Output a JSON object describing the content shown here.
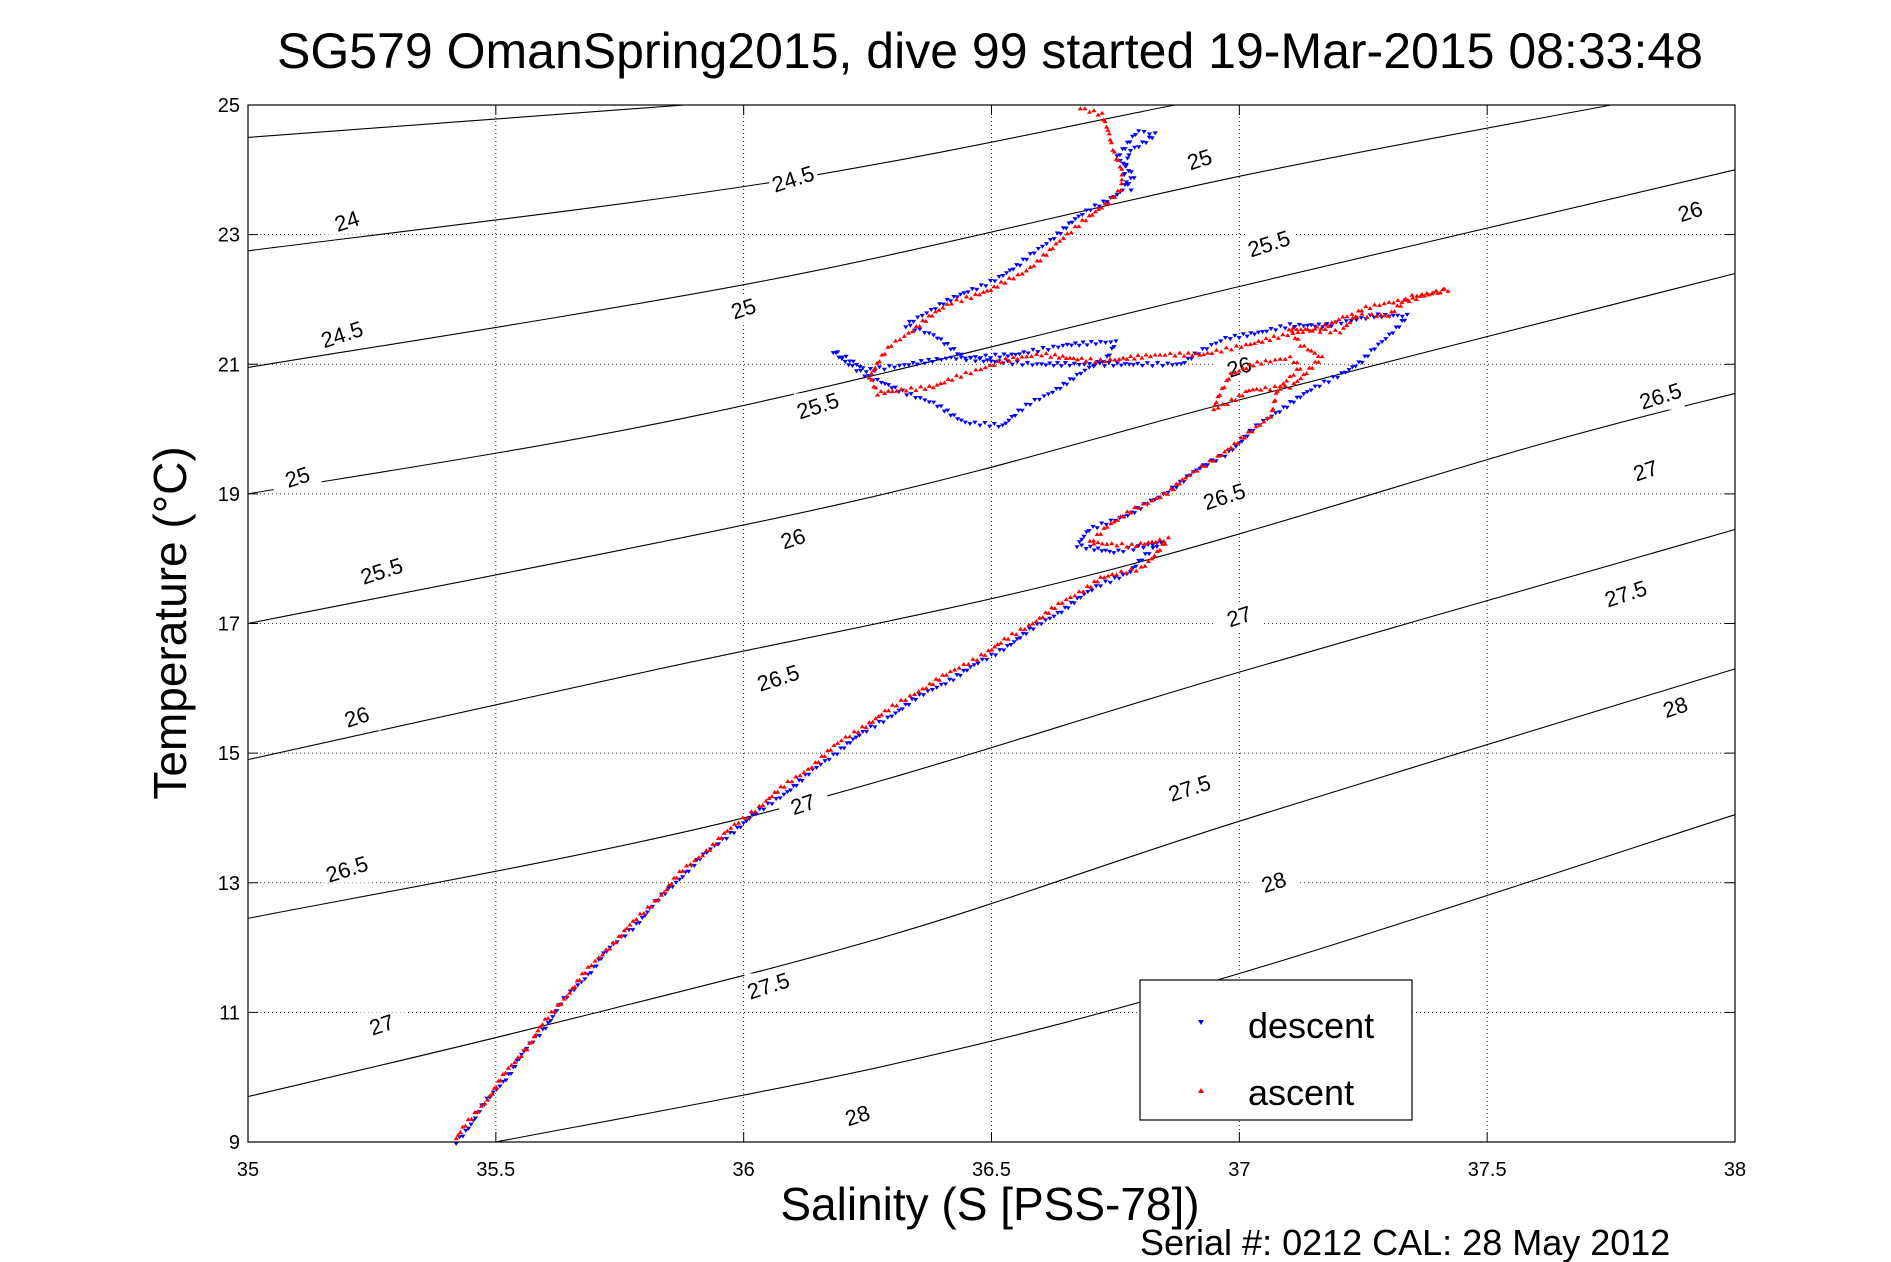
{
  "chart_data": {
    "type": "scatter",
    "title": "SG579 OmanSpring2015, dive 99 started 19-Mar-2015 08:33:48",
    "xlabel": "Salinity (S [PSS-78])",
    "ylabel": "Temperature (°C)",
    "footer": "Serial #: 0212  CAL: 28 May 2012",
    "xlim": [
      35,
      38
    ],
    "ylim": [
      9,
      25
    ],
    "xticks": [
      35,
      35.5,
      36,
      36.5,
      37,
      37.5,
      38
    ],
    "xtick_labels": [
      "35",
      "35.5",
      "36",
      "36.5",
      "37",
      "37.5",
      "38"
    ],
    "yticks": [
      9,
      11,
      13,
      15,
      17,
      19,
      21,
      23,
      25
    ],
    "ytick_labels": [
      "9",
      "11",
      "13",
      "15",
      "17",
      "19",
      "21",
      "23",
      "25"
    ],
    "grid": true,
    "legend_position": "bottom-right",
    "density_contours": [
      {
        "level": "24",
        "points": [
          [
            35,
            24.5
          ],
          [
            35.88,
            25
          ]
        ]
      },
      {
        "level": "24.5",
        "points": [
          [
            35,
            22.75
          ],
          [
            36.05,
            23.8
          ],
          [
            36.87,
            25
          ]
        ]
      },
      {
        "level": "25",
        "points": [
          [
            35,
            20.95
          ],
          [
            36.05,
            22.3
          ],
          [
            37.0,
            23.9
          ],
          [
            37.75,
            25
          ]
        ]
      },
      {
        "level": "25.5",
        "points": [
          [
            35,
            19.0
          ],
          [
            35.9,
            20.2
          ],
          [
            37.0,
            22.2
          ],
          [
            38,
            24.0
          ]
        ]
      },
      {
        "level": "26",
        "points": [
          [
            35,
            17.0
          ],
          [
            36.2,
            18.85
          ],
          [
            37.0,
            20.45
          ],
          [
            38,
            22.4
          ]
        ]
      },
      {
        "level": "26.5",
        "points": [
          [
            35,
            14.9
          ],
          [
            35.8,
            16.25
          ],
          [
            36.7,
            17.75
          ],
          [
            37.6,
            19.75
          ],
          [
            38,
            20.55
          ]
        ]
      },
      {
        "level": "27",
        "points": [
          [
            35,
            12.45
          ],
          [
            36.0,
            14.0
          ],
          [
            37.0,
            16.25
          ],
          [
            38,
            18.45
          ]
        ]
      },
      {
        "level": "27.5",
        "points": [
          [
            35,
            9.7
          ],
          [
            35.6,
            10.8
          ],
          [
            36.3,
            12.2
          ],
          [
            37.0,
            13.95
          ],
          [
            38,
            16.3
          ]
        ]
      },
      {
        "level": "28",
        "points": [
          [
            35.5,
            9.0
          ],
          [
            36.3,
            10.2
          ],
          [
            37.0,
            11.6
          ],
          [
            38,
            14.05
          ]
        ]
      }
    ],
    "contour_labels": [
      {
        "text": "24",
        "x": 35.2,
        "y": 23.2
      },
      {
        "text": "24.5",
        "x": 36.1,
        "y": 23.85
      },
      {
        "text": "24.5",
        "x": 35.19,
        "y": 21.45
      },
      {
        "text": "25",
        "x": 36.0,
        "y": 21.85
      },
      {
        "text": "25",
        "x": 36.92,
        "y": 24.15
      },
      {
        "text": "25",
        "x": 35.1,
        "y": 19.25
      },
      {
        "text": "25.5",
        "x": 36.15,
        "y": 20.35
      },
      {
        "text": "25.5",
        "x": 37.06,
        "y": 22.85
      },
      {
        "text": "25.5",
        "x": 35.27,
        "y": 17.8
      },
      {
        "text": "26",
        "x": 36.1,
        "y": 18.3
      },
      {
        "text": "26",
        "x": 37.0,
        "y": 20.95
      },
      {
        "text": "26",
        "x": 37.91,
        "y": 23.35
      },
      {
        "text": "26",
        "x": 35.22,
        "y": 15.55
      },
      {
        "text": "26.5",
        "x": 36.07,
        "y": 16.15
      },
      {
        "text": "26.5",
        "x": 36.97,
        "y": 18.95
      },
      {
        "text": "26.5",
        "x": 37.85,
        "y": 20.5
      },
      {
        "text": "26.5",
        "x": 35.2,
        "y": 13.2
      },
      {
        "text": "27",
        "x": 36.12,
        "y": 14.2
      },
      {
        "text": "27",
        "x": 37.0,
        "y": 17.1
      },
      {
        "text": "27",
        "x": 37.82,
        "y": 19.35
      },
      {
        "text": "27",
        "x": 35.27,
        "y": 10.8
      },
      {
        "text": "27.5",
        "x": 36.05,
        "y": 11.4
      },
      {
        "text": "27.5",
        "x": 36.9,
        "y": 14.45
      },
      {
        "text": "27.5",
        "x": 37.78,
        "y": 17.45
      },
      {
        "text": "28",
        "x": 36.23,
        "y": 9.4
      },
      {
        "text": "28",
        "x": 37.07,
        "y": 13.0
      },
      {
        "text": "28",
        "x": 37.88,
        "y": 15.7
      }
    ],
    "series": [
      {
        "name": "descent",
        "color": "#0000ff",
        "marker": "triangle-down",
        "path": [
          [
            35.42,
            9.0
          ],
          [
            35.48,
            9.6
          ],
          [
            35.56,
            10.4
          ],
          [
            35.64,
            11.2
          ],
          [
            35.72,
            11.9
          ],
          [
            35.8,
            12.5
          ],
          [
            35.88,
            13.15
          ],
          [
            35.97,
            13.75
          ],
          [
            36.05,
            14.2
          ],
          [
            36.12,
            14.6
          ],
          [
            36.2,
            15.1
          ],
          [
            36.28,
            15.5
          ],
          [
            36.35,
            15.85
          ],
          [
            36.42,
            16.15
          ],
          [
            36.5,
            16.5
          ],
          [
            36.58,
            16.9
          ],
          [
            36.66,
            17.3
          ],
          [
            36.72,
            17.6
          ],
          [
            36.78,
            17.8
          ],
          [
            36.84,
            18.25
          ],
          [
            36.75,
            18.1
          ],
          [
            36.67,
            18.2
          ],
          [
            36.7,
            18.45
          ],
          [
            36.78,
            18.7
          ],
          [
            36.84,
            18.95
          ],
          [
            36.9,
            19.3
          ],
          [
            36.97,
            19.6
          ],
          [
            37.03,
            20.0
          ],
          [
            37.1,
            20.4
          ],
          [
            37.18,
            20.75
          ],
          [
            37.25,
            21.05
          ],
          [
            37.3,
            21.45
          ],
          [
            37.34,
            21.75
          ],
          [
            37.27,
            21.75
          ],
          [
            37.18,
            21.6
          ],
          [
            37.1,
            21.6
          ],
          [
            37.05,
            21.5
          ],
          [
            36.97,
            21.4
          ],
          [
            36.88,
            21.0
          ],
          [
            36.78,
            21.0
          ],
          [
            36.67,
            21.0
          ],
          [
            36.58,
            21.0
          ],
          [
            36.5,
            21.05
          ],
          [
            36.42,
            21.1
          ],
          [
            36.33,
            21.0
          ],
          [
            36.25,
            20.9
          ],
          [
            36.18,
            21.2
          ],
          [
            36.25,
            20.8
          ],
          [
            36.3,
            20.65
          ],
          [
            36.38,
            20.4
          ],
          [
            36.45,
            20.1
          ],
          [
            36.52,
            20.05
          ],
          [
            36.58,
            20.4
          ],
          [
            36.66,
            20.75
          ],
          [
            36.73,
            21.1
          ],
          [
            36.75,
            21.35
          ],
          [
            36.65,
            21.3
          ],
          [
            36.55,
            21.15
          ],
          [
            36.45,
            21.1
          ],
          [
            36.38,
            21.45
          ],
          [
            36.33,
            21.6
          ],
          [
            36.4,
            21.95
          ],
          [
            36.48,
            22.2
          ],
          [
            36.56,
            22.55
          ],
          [
            36.63,
            23.0
          ],
          [
            36.7,
            23.4
          ],
          [
            36.76,
            23.65
          ],
          [
            36.79,
            23.9
          ],
          [
            36.75,
            24.2
          ],
          [
            36.8,
            24.6
          ],
          [
            36.83,
            24.55
          ],
          [
            36.78,
            24.3
          ],
          [
            36.77,
            23.9
          ],
          [
            36.78,
            23.7
          ]
        ]
      },
      {
        "name": "ascent",
        "color": "#ff0000",
        "marker": "triangle-up",
        "path": [
          [
            35.42,
            9.05
          ],
          [
            35.48,
            9.65
          ],
          [
            35.56,
            10.45
          ],
          [
            35.64,
            11.25
          ],
          [
            35.72,
            11.95
          ],
          [
            35.8,
            12.55
          ],
          [
            35.88,
            13.2
          ],
          [
            35.97,
            13.8
          ],
          [
            36.05,
            14.3
          ],
          [
            36.12,
            14.7
          ],
          [
            36.2,
            15.2
          ],
          [
            36.28,
            15.6
          ],
          [
            36.35,
            15.95
          ],
          [
            36.42,
            16.25
          ],
          [
            36.5,
            16.6
          ],
          [
            36.58,
            17.0
          ],
          [
            36.66,
            17.4
          ],
          [
            36.72,
            17.7
          ],
          [
            36.8,
            17.85
          ],
          [
            36.86,
            18.3
          ],
          [
            36.78,
            18.2
          ],
          [
            36.7,
            18.25
          ],
          [
            36.73,
            18.5
          ],
          [
            36.8,
            18.8
          ],
          [
            36.86,
            19.05
          ],
          [
            36.93,
            19.45
          ],
          [
            37.0,
            19.8
          ],
          [
            37.06,
            20.2
          ],
          [
            37.08,
            20.6
          ],
          [
            37.12,
            20.95
          ],
          [
            37.1,
            21.1
          ],
          [
            37.03,
            21.0
          ],
          [
            36.98,
            20.85
          ],
          [
            36.95,
            20.3
          ],
          [
            37.02,
            20.6
          ],
          [
            37.1,
            20.65
          ],
          [
            37.17,
            21.1
          ],
          [
            37.12,
            21.3
          ],
          [
            37.1,
            21.55
          ],
          [
            37.2,
            21.5
          ],
          [
            37.25,
            21.85
          ],
          [
            37.3,
            21.95
          ],
          [
            37.35,
            22.0
          ],
          [
            37.42,
            22.15
          ],
          [
            37.35,
            22.05
          ],
          [
            37.3,
            21.75
          ],
          [
            37.22,
            21.75
          ],
          [
            37.18,
            21.6
          ],
          [
            36.93,
            21.15
          ],
          [
            36.85,
            21.15
          ],
          [
            36.78,
            21.1
          ],
          [
            36.72,
            21.05
          ],
          [
            36.65,
            21.1
          ],
          [
            36.6,
            21.15
          ],
          [
            36.52,
            21.05
          ],
          [
            36.45,
            20.85
          ],
          [
            36.38,
            20.65
          ],
          [
            36.32,
            20.6
          ],
          [
            36.27,
            20.55
          ],
          [
            36.25,
            20.8
          ],
          [
            36.27,
            21.0
          ],
          [
            36.3,
            21.3
          ],
          [
            36.36,
            21.65
          ],
          [
            36.42,
            21.95
          ],
          [
            36.5,
            22.15
          ],
          [
            36.56,
            22.4
          ],
          [
            36.62,
            22.75
          ],
          [
            36.68,
            23.2
          ],
          [
            36.74,
            23.5
          ],
          [
            36.76,
            23.7
          ],
          [
            36.76,
            24.0
          ],
          [
            36.75,
            24.25
          ],
          [
            36.74,
            24.55
          ],
          [
            36.72,
            24.85
          ],
          [
            36.68,
            24.95
          ]
        ]
      }
    ],
    "legend": [
      "descent",
      "ascent"
    ]
  }
}
